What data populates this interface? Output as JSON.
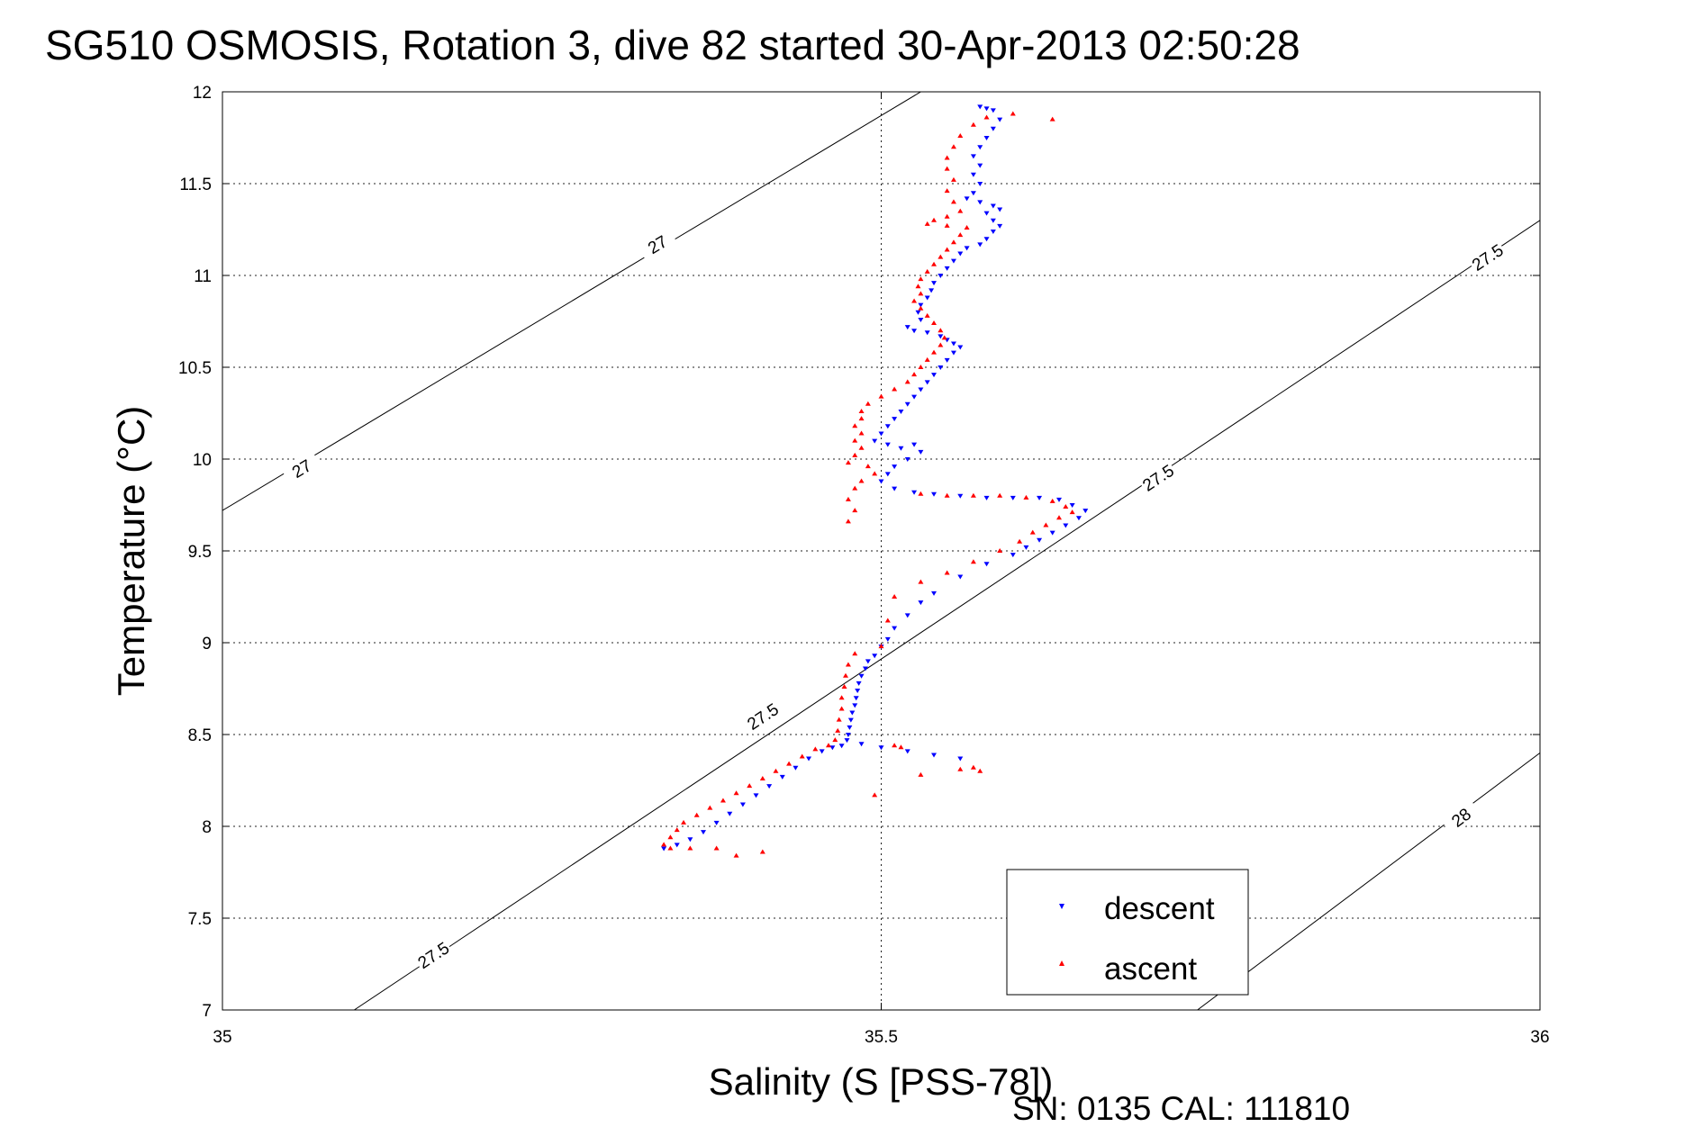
{
  "chart_data": {
    "type": "scatter",
    "title": "SG510 OSMOSIS, Rotation 3, dive 82 started 30-Apr-2013 02:50:28",
    "xlabel": "Salinity (S [PSS-78])",
    "ylabel": "Temperature (°C)",
    "xlim": [
      35,
      36
    ],
    "ylim": [
      7,
      12
    ],
    "xticks": [
      "35",
      "35.5",
      "36"
    ],
    "yticks": [
      "7",
      "7.5",
      "8",
      "8.5",
      "9",
      "9.5",
      "10",
      "10.5",
      "11",
      "11.5",
      "12"
    ],
    "grid": true,
    "legend_position": "bottom-right",
    "footer": "SN: 0135  CAL: 111810",
    "contours": [
      {
        "level": "27",
        "points": [
          [
            35.0,
            9.72
          ],
          [
            35.53,
            12.0
          ]
        ],
        "labels": [
          [
            35.06,
            9.95
          ],
          [
            35.33,
            11.17
          ]
        ]
      },
      {
        "level": "27.5",
        "points": [
          [
            35.1,
            7.0
          ],
          [
            36.0,
            11.3
          ]
        ],
        "labels": [
          [
            35.16,
            7.3
          ],
          [
            35.41,
            8.6
          ],
          [
            35.71,
            9.9
          ],
          [
            35.96,
            11.1
          ]
        ]
      },
      {
        "level": "28",
        "points": [
          [
            35.74,
            7.0
          ],
          [
            36.0,
            8.4
          ]
        ],
        "labels": [
          [
            35.94,
            8.05
          ]
        ]
      }
    ],
    "series": [
      {
        "name": "descent",
        "color": "#0000ff",
        "marker": "triangle-down",
        "points": [
          [
            35.575,
            11.92
          ],
          [
            35.58,
            11.91
          ],
          [
            35.585,
            11.9
          ],
          [
            35.59,
            11.85
          ],
          [
            35.585,
            11.8
          ],
          [
            35.58,
            11.75
          ],
          [
            35.575,
            11.7
          ],
          [
            35.57,
            11.65
          ],
          [
            35.575,
            11.6
          ],
          [
            35.57,
            11.55
          ],
          [
            35.575,
            11.5
          ],
          [
            35.57,
            11.45
          ],
          [
            35.565,
            11.42
          ],
          [
            35.575,
            11.4
          ],
          [
            35.585,
            11.38
          ],
          [
            35.59,
            11.36
          ],
          [
            35.58,
            11.34
          ],
          [
            35.585,
            11.3
          ],
          [
            35.59,
            11.27
          ],
          [
            35.585,
            11.24
          ],
          [
            35.58,
            11.2
          ],
          [
            35.575,
            11.17
          ],
          [
            35.565,
            11.15
          ],
          [
            35.56,
            11.12
          ],
          [
            35.555,
            11.08
          ],
          [
            35.55,
            11.04
          ],
          [
            35.545,
            11.0
          ],
          [
            35.54,
            10.96
          ],
          [
            35.538,
            10.92
          ],
          [
            35.535,
            10.88
          ],
          [
            35.53,
            10.84
          ],
          [
            35.528,
            10.8
          ],
          [
            35.53,
            10.76
          ],
          [
            35.52,
            10.72
          ],
          [
            35.525,
            10.7
          ],
          [
            35.535,
            10.69
          ],
          [
            35.545,
            10.67
          ],
          [
            35.55,
            10.65
          ],
          [
            35.555,
            10.63
          ],
          [
            35.56,
            10.61
          ],
          [
            35.555,
            10.58
          ],
          [
            35.55,
            10.54
          ],
          [
            35.545,
            10.5
          ],
          [
            35.54,
            10.46
          ],
          [
            35.535,
            10.42
          ],
          [
            35.53,
            10.38
          ],
          [
            35.525,
            10.34
          ],
          [
            35.52,
            10.3
          ],
          [
            35.515,
            10.26
          ],
          [
            35.51,
            10.22
          ],
          [
            35.505,
            10.18
          ],
          [
            35.5,
            10.14
          ],
          [
            35.495,
            10.1
          ],
          [
            35.505,
            10.08
          ],
          [
            35.515,
            10.06
          ],
          [
            35.525,
            10.08
          ],
          [
            35.53,
            10.04
          ],
          [
            35.52,
            10.0
          ],
          [
            35.51,
            9.96
          ],
          [
            35.505,
            9.92
          ],
          [
            35.5,
            9.88
          ],
          [
            35.51,
            9.84
          ],
          [
            35.525,
            9.82
          ],
          [
            35.54,
            9.81
          ],
          [
            35.56,
            9.8
          ],
          [
            35.58,
            9.79
          ],
          [
            35.6,
            9.79
          ],
          [
            35.62,
            9.79
          ],
          [
            35.635,
            9.78
          ],
          [
            35.645,
            9.75
          ],
          [
            35.655,
            9.72
          ],
          [
            35.65,
            9.68
          ],
          [
            35.64,
            9.64
          ],
          [
            35.63,
            9.6
          ],
          [
            35.62,
            9.56
          ],
          [
            35.61,
            9.52
          ],
          [
            35.6,
            9.48
          ],
          [
            35.58,
            9.43
          ],
          [
            35.56,
            9.36
          ],
          [
            35.54,
            9.27
          ],
          [
            35.53,
            9.22
          ],
          [
            35.52,
            9.15
          ],
          [
            35.51,
            9.08
          ],
          [
            35.505,
            9.02
          ],
          [
            35.5,
            8.98
          ],
          [
            35.495,
            8.93
          ],
          [
            35.49,
            8.9
          ],
          [
            35.488,
            8.86
          ],
          [
            35.485,
            8.82
          ],
          [
            35.483,
            8.78
          ],
          [
            35.482,
            8.74
          ],
          [
            35.481,
            8.7
          ],
          [
            35.48,
            8.66
          ],
          [
            35.478,
            8.62
          ],
          [
            35.477,
            8.58
          ],
          [
            35.476,
            8.54
          ],
          [
            35.475,
            8.5
          ],
          [
            35.474,
            8.47
          ],
          [
            35.47,
            8.44
          ],
          [
            35.463,
            8.43
          ],
          [
            35.455,
            8.41
          ],
          [
            35.445,
            8.37
          ],
          [
            35.435,
            8.32
          ],
          [
            35.425,
            8.27
          ],
          [
            35.415,
            8.22
          ],
          [
            35.405,
            8.17
          ],
          [
            35.395,
            8.12
          ],
          [
            35.385,
            8.07
          ],
          [
            35.375,
            8.02
          ],
          [
            35.365,
            7.97
          ],
          [
            35.355,
            7.93
          ],
          [
            35.345,
            7.9
          ],
          [
            35.335,
            7.88
          ],
          [
            35.485,
            8.45
          ],
          [
            35.5,
            8.43
          ],
          [
            35.52,
            8.41
          ],
          [
            35.54,
            8.39
          ],
          [
            35.56,
            8.37
          ]
        ]
      },
      {
        "name": "ascent",
        "color": "#ff0000",
        "marker": "triangle-up",
        "points": [
          [
            35.63,
            11.85
          ],
          [
            35.6,
            11.88
          ],
          [
            35.58,
            11.86
          ],
          [
            35.57,
            11.82
          ],
          [
            35.56,
            11.76
          ],
          [
            35.555,
            11.7
          ],
          [
            35.55,
            11.64
          ],
          [
            35.55,
            11.58
          ],
          [
            35.555,
            11.52
          ],
          [
            35.55,
            11.46
          ],
          [
            35.555,
            11.4
          ],
          [
            35.56,
            11.35
          ],
          [
            35.55,
            11.32
          ],
          [
            35.54,
            11.3
          ],
          [
            35.535,
            11.28
          ],
          [
            35.55,
            11.27
          ],
          [
            35.565,
            11.26
          ],
          [
            35.56,
            11.22
          ],
          [
            35.555,
            11.18
          ],
          [
            35.55,
            11.14
          ],
          [
            35.545,
            11.1
          ],
          [
            35.54,
            11.06
          ],
          [
            35.535,
            11.02
          ],
          [
            35.53,
            10.98
          ],
          [
            35.528,
            10.94
          ],
          [
            35.53,
            10.9
          ],
          [
            35.525,
            10.86
          ],
          [
            35.53,
            10.82
          ],
          [
            35.535,
            10.78
          ],
          [
            35.54,
            10.74
          ],
          [
            35.545,
            10.7
          ],
          [
            35.548,
            10.66
          ],
          [
            35.545,
            10.62
          ],
          [
            35.54,
            10.58
          ],
          [
            35.535,
            10.54
          ],
          [
            35.53,
            10.5
          ],
          [
            35.525,
            10.46
          ],
          [
            35.52,
            10.42
          ],
          [
            35.51,
            10.38
          ],
          [
            35.5,
            10.34
          ],
          [
            35.49,
            10.3
          ],
          [
            35.485,
            10.26
          ],
          [
            35.485,
            10.22
          ],
          [
            35.48,
            10.18
          ],
          [
            35.485,
            10.14
          ],
          [
            35.48,
            10.1
          ],
          [
            35.485,
            10.06
          ],
          [
            35.48,
            10.02
          ],
          [
            35.475,
            9.98
          ],
          [
            35.49,
            9.96
          ],
          [
            35.495,
            9.92
          ],
          [
            35.485,
            9.88
          ],
          [
            35.48,
            9.84
          ],
          [
            35.475,
            9.78
          ],
          [
            35.48,
            9.72
          ],
          [
            35.475,
            9.66
          ],
          [
            35.53,
            9.81
          ],
          [
            35.55,
            9.8
          ],
          [
            35.57,
            9.8
          ],
          [
            35.59,
            9.8
          ],
          [
            35.61,
            9.79
          ],
          [
            35.63,
            9.77
          ],
          [
            35.64,
            9.74
          ],
          [
            35.645,
            9.71
          ],
          [
            35.635,
            9.68
          ],
          [
            35.625,
            9.64
          ],
          [
            35.615,
            9.6
          ],
          [
            35.605,
            9.55
          ],
          [
            35.59,
            9.5
          ],
          [
            35.57,
            9.44
          ],
          [
            35.55,
            9.38
          ],
          [
            35.53,
            9.33
          ],
          [
            35.51,
            9.25
          ],
          [
            35.505,
            9.12
          ],
          [
            35.5,
            8.98
          ],
          [
            35.48,
            8.94
          ],
          [
            35.475,
            8.88
          ],
          [
            35.473,
            8.82
          ],
          [
            35.472,
            8.76
          ],
          [
            35.47,
            8.7
          ],
          [
            35.47,
            8.64
          ],
          [
            35.468,
            8.58
          ],
          [
            35.467,
            8.52
          ],
          [
            35.465,
            8.47
          ],
          [
            35.46,
            8.44
          ],
          [
            35.45,
            8.42
          ],
          [
            35.44,
            8.38
          ],
          [
            35.43,
            8.34
          ],
          [
            35.42,
            8.3
          ],
          [
            35.41,
            8.26
          ],
          [
            35.4,
            8.22
          ],
          [
            35.39,
            8.18
          ],
          [
            35.38,
            8.14
          ],
          [
            35.37,
            8.1
          ],
          [
            35.36,
            8.06
          ],
          [
            35.35,
            8.02
          ],
          [
            35.345,
            7.98
          ],
          [
            35.34,
            7.94
          ],
          [
            35.335,
            7.9
          ],
          [
            35.34,
            7.88
          ],
          [
            35.355,
            7.88
          ],
          [
            35.375,
            7.88
          ],
          [
            35.39,
            7.84
          ],
          [
            35.41,
            7.86
          ],
          [
            35.51,
            8.44
          ],
          [
            35.515,
            8.43
          ],
          [
            35.53,
            8.28
          ],
          [
            35.56,
            8.31
          ],
          [
            35.57,
            8.32
          ],
          [
            35.575,
            8.3
          ],
          [
            35.495,
            8.17
          ]
        ]
      }
    ]
  }
}
